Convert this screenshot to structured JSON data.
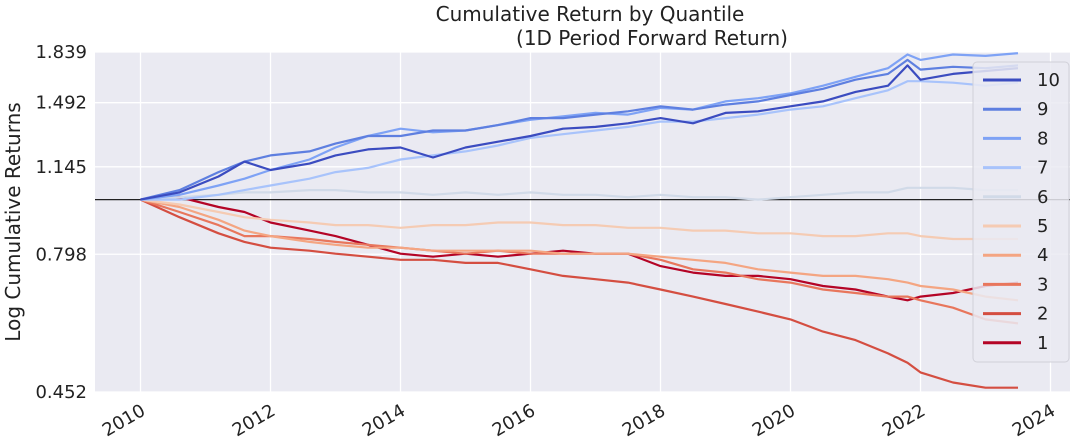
{
  "chart_data": {
    "type": "line",
    "title": "Cumulative Return by Quantile",
    "subtitle": "(1D Period Forward Return)",
    "ylabel": "Log Cumulative Returns",
    "xlabel": "",
    "x_range": [
      2009.3,
      2024.3
    ],
    "ylim": [
      0.452,
      1.839
    ],
    "yscale": "log",
    "y_ticks": [
      "1.839",
      "1.492",
      "1.145",
      "0.798",
      "0.452"
    ],
    "x_ticks": [
      "2010",
      "2012",
      "2014",
      "2016",
      "2018",
      "2020",
      "2022",
      "2024"
    ],
    "baseline": 1.0,
    "grid": true,
    "legend_position": "right",
    "series": [
      {
        "name": "10",
        "color": "#3b4cc0",
        "x": [
          2010.0,
          2010.6,
          2011.2,
          2011.6,
          2012.0,
          2012.6,
          2013.0,
          2013.5,
          2014.0,
          2014.5,
          2015.0,
          2015.5,
          2016.0,
          2016.5,
          2017.0,
          2017.5,
          2018.0,
          2018.5,
          2019.0,
          2019.5,
          2020.0,
          2020.5,
          2021.0,
          2021.5,
          2021.8,
          2022.0,
          2022.5,
          2023.0,
          2023.5
        ],
        "values": [
          1.0,
          1.03,
          1.1,
          1.17,
          1.13,
          1.16,
          1.2,
          1.23,
          1.24,
          1.19,
          1.24,
          1.27,
          1.3,
          1.34,
          1.35,
          1.37,
          1.4,
          1.37,
          1.43,
          1.44,
          1.47,
          1.5,
          1.56,
          1.6,
          1.74,
          1.64,
          1.68,
          1.7,
          1.72
        ]
      },
      {
        "name": "9",
        "color": "#5e7fe0",
        "x": [
          2010.0,
          2010.6,
          2011.2,
          2011.6,
          2012.0,
          2012.6,
          2013.0,
          2013.5,
          2014.0,
          2014.5,
          2015.0,
          2015.5,
          2016.0,
          2016.5,
          2017.0,
          2017.5,
          2018.0,
          2018.5,
          2019.0,
          2019.5,
          2020.0,
          2020.5,
          2021.0,
          2021.5,
          2021.8,
          2022.0,
          2022.5,
          2023.0,
          2023.5
        ],
        "values": [
          1.0,
          1.04,
          1.12,
          1.17,
          1.2,
          1.22,
          1.26,
          1.3,
          1.3,
          1.33,
          1.33,
          1.36,
          1.4,
          1.4,
          1.42,
          1.44,
          1.47,
          1.45,
          1.48,
          1.5,
          1.54,
          1.58,
          1.64,
          1.68,
          1.78,
          1.71,
          1.73,
          1.72,
          1.74
        ]
      },
      {
        "name": "8",
        "color": "#7ea2f5",
        "x": [
          2010.0,
          2010.6,
          2011.2,
          2011.6,
          2012.0,
          2012.6,
          2013.0,
          2013.5,
          2014.0,
          2014.5,
          2015.0,
          2015.5,
          2016.0,
          2016.5,
          2017.0,
          2017.5,
          2018.0,
          2018.5,
          2019.0,
          2019.5,
          2020.0,
          2020.5,
          2021.0,
          2021.5,
          2021.8,
          2022.0,
          2022.5,
          2023.0,
          2023.5
        ],
        "values": [
          1.0,
          1.02,
          1.06,
          1.09,
          1.13,
          1.18,
          1.24,
          1.3,
          1.34,
          1.32,
          1.33,
          1.36,
          1.39,
          1.41,
          1.43,
          1.42,
          1.46,
          1.45,
          1.5,
          1.52,
          1.55,
          1.6,
          1.66,
          1.72,
          1.82,
          1.78,
          1.82,
          1.81,
          1.83
        ]
      },
      {
        "name": "7",
        "color": "#a8c3fb",
        "x": [
          2010.0,
          2010.6,
          2011.2,
          2011.6,
          2012.0,
          2012.6,
          2013.0,
          2013.5,
          2014.0,
          2014.5,
          2015.0,
          2015.5,
          2016.0,
          2016.5,
          2017.0,
          2017.5,
          2018.0,
          2018.5,
          2019.0,
          2019.5,
          2020.0,
          2020.5,
          2021.0,
          2021.5,
          2021.8,
          2022.0,
          2022.5,
          2023.0,
          2023.5
        ],
        "values": [
          1.0,
          1.0,
          1.02,
          1.04,
          1.06,
          1.09,
          1.12,
          1.14,
          1.18,
          1.2,
          1.22,
          1.25,
          1.29,
          1.31,
          1.33,
          1.35,
          1.38,
          1.38,
          1.4,
          1.42,
          1.45,
          1.47,
          1.52,
          1.57,
          1.63,
          1.63,
          1.62,
          1.6,
          1.62
        ]
      },
      {
        "name": "6",
        "color": "#d1dae8",
        "x": [
          2010.0,
          2010.6,
          2011.2,
          2011.6,
          2012.0,
          2012.6,
          2013.0,
          2013.5,
          2014.0,
          2014.5,
          2015.0,
          2015.5,
          2016.0,
          2016.5,
          2017.0,
          2017.5,
          2018.0,
          2018.5,
          2019.0,
          2019.5,
          2020.0,
          2020.5,
          2021.0,
          2021.5,
          2021.8,
          2022.0,
          2022.5,
          2023.0,
          2023.5
        ],
        "values": [
          1.0,
          1.01,
          1.02,
          1.03,
          1.03,
          1.04,
          1.04,
          1.03,
          1.03,
          1.02,
          1.03,
          1.02,
          1.03,
          1.02,
          1.02,
          1.01,
          1.02,
          1.01,
          1.01,
          1.0,
          1.01,
          1.02,
          1.03,
          1.03,
          1.05,
          1.05,
          1.05,
          1.04,
          1.04
        ]
      },
      {
        "name": "5",
        "color": "#f5cbb3",
        "x": [
          2010.0,
          2010.6,
          2011.2,
          2011.6,
          2012.0,
          2012.6,
          2013.0,
          2013.5,
          2014.0,
          2014.5,
          2015.0,
          2015.5,
          2016.0,
          2016.5,
          2017.0,
          2017.5,
          2018.0,
          2018.5,
          2019.0,
          2019.5,
          2020.0,
          2020.5,
          2021.0,
          2021.5,
          2021.8,
          2022.0,
          2022.5,
          2023.0,
          2023.5
        ],
        "values": [
          1.0,
          0.98,
          0.95,
          0.93,
          0.92,
          0.91,
          0.9,
          0.9,
          0.89,
          0.9,
          0.9,
          0.91,
          0.91,
          0.9,
          0.9,
          0.89,
          0.89,
          0.88,
          0.88,
          0.87,
          0.87,
          0.86,
          0.86,
          0.87,
          0.87,
          0.86,
          0.85,
          0.85,
          0.85
        ]
      },
      {
        "name": "4",
        "color": "#f4a582",
        "x": [
          2010.0,
          2010.6,
          2011.2,
          2011.6,
          2012.0,
          2012.6,
          2013.0,
          2013.5,
          2014.0,
          2014.5,
          2015.0,
          2015.5,
          2016.0,
          2016.5,
          2017.0,
          2017.5,
          2018.0,
          2018.5,
          2019.0,
          2019.5,
          2020.0,
          2020.5,
          2021.0,
          2021.5,
          2021.8,
          2022.0,
          2022.5,
          2023.0,
          2023.5
        ],
        "values": [
          1.0,
          0.97,
          0.92,
          0.88,
          0.86,
          0.84,
          0.83,
          0.82,
          0.82,
          0.81,
          0.81,
          0.81,
          0.81,
          0.8,
          0.8,
          0.8,
          0.79,
          0.78,
          0.77,
          0.75,
          0.74,
          0.73,
          0.73,
          0.72,
          0.71,
          0.7,
          0.69,
          0.67,
          0.66
        ]
      },
      {
        "name": "3",
        "color": "#e8765c",
        "x": [
          2010.0,
          2010.6,
          2011.2,
          2011.6,
          2012.0,
          2012.6,
          2013.0,
          2013.5,
          2014.0,
          2014.5,
          2015.0,
          2015.5,
          2016.0,
          2016.5,
          2017.0,
          2017.5,
          2018.0,
          2018.5,
          2019.0,
          2019.5,
          2020.0,
          2020.5,
          2021.0,
          2021.5,
          2021.8,
          2022.0,
          2022.5,
          2023.0,
          2023.5
        ],
        "values": [
          1.0,
          0.95,
          0.9,
          0.86,
          0.86,
          0.85,
          0.84,
          0.83,
          0.82,
          0.81,
          0.8,
          0.81,
          0.8,
          0.8,
          0.8,
          0.8,
          0.78,
          0.75,
          0.74,
          0.72,
          0.71,
          0.69,
          0.68,
          0.67,
          0.67,
          0.66,
          0.64,
          0.61,
          0.6
        ]
      },
      {
        "name": "2",
        "color": "#d44e41",
        "x": [
          2010.0,
          2010.6,
          2011.2,
          2011.6,
          2012.0,
          2012.6,
          2013.0,
          2013.5,
          2014.0,
          2014.5,
          2015.0,
          2015.5,
          2016.0,
          2016.5,
          2017.0,
          2017.5,
          2018.0,
          2018.5,
          2019.0,
          2019.5,
          2020.0,
          2020.5,
          2021.0,
          2021.5,
          2021.8,
          2022.0,
          2022.5,
          2023.0,
          2023.5
        ],
        "values": [
          1.0,
          0.93,
          0.87,
          0.84,
          0.82,
          0.81,
          0.8,
          0.79,
          0.78,
          0.78,
          0.77,
          0.77,
          0.75,
          0.73,
          0.72,
          0.71,
          0.69,
          0.67,
          0.65,
          0.63,
          0.61,
          0.58,
          0.56,
          0.53,
          0.51,
          0.49,
          0.47,
          0.46,
          0.46
        ]
      },
      {
        "name": "1",
        "color": "#b40426",
        "x": [
          2010.0,
          2010.6,
          2011.2,
          2011.6,
          2012.0,
          2012.6,
          2013.0,
          2013.5,
          2014.0,
          2014.5,
          2015.0,
          2015.5,
          2016.0,
          2016.5,
          2017.0,
          2017.5,
          2018.0,
          2018.5,
          2019.0,
          2019.5,
          2020.0,
          2020.5,
          2021.0,
          2021.5,
          2021.8,
          2022.0,
          2022.5,
          2023.0,
          2023.5
        ],
        "values": [
          1.0,
          1.01,
          0.97,
          0.95,
          0.91,
          0.88,
          0.86,
          0.83,
          0.8,
          0.79,
          0.8,
          0.79,
          0.8,
          0.81,
          0.8,
          0.8,
          0.76,
          0.74,
          0.73,
          0.73,
          0.72,
          0.7,
          0.69,
          0.67,
          0.66,
          0.67,
          0.68,
          0.7,
          0.71
        ]
      }
    ]
  }
}
